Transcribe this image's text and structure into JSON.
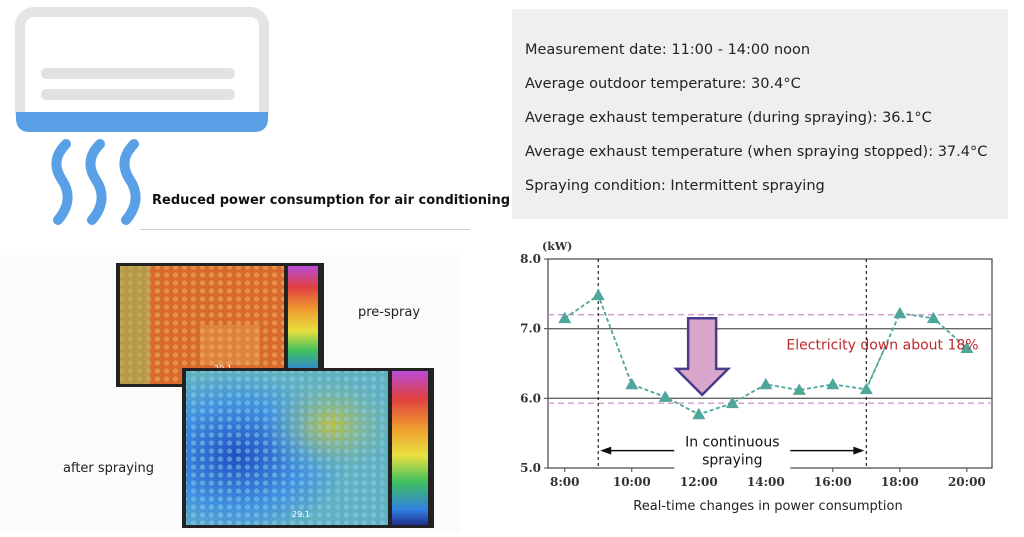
{
  "caption": {
    "ac": "Reduced power consumption for air conditioning"
  },
  "info": {
    "lines": [
      "Measurement date: 11:00 - 14:00 noon",
      "Average outdoor temperature: 30.4°C",
      "Average exhaust temperature (during spraying): 36.1°C",
      "Average exhaust temperature (when spraying stopped): 37.4°C",
      "Spraying condition: Intermittent spraying"
    ]
  },
  "thermal": {
    "pre_label": "pre-spray",
    "after_label": "after spraying",
    "pre_reading": "29.1",
    "after_reading": "29.1"
  },
  "icons": {
    "ac": "air-conditioner-icon",
    "heat": "heat-wave-icon"
  },
  "colors": {
    "accent_blue": "#5aa0e6",
    "series": "#4fa69a",
    "reference_line": "#cc9ccc",
    "annotation_red": "#c0282e",
    "arrow_fill": "#d9a6cc",
    "arrow_stroke": "#4a3c8a",
    "panel_bg": "#efefef"
  },
  "chart_data": {
    "type": "line",
    "title": "",
    "ylabel": "(kW)",
    "caption": "Real-time changes in power consumption",
    "x_ticks": [
      8,
      10,
      12,
      14,
      16,
      18,
      20
    ],
    "x_tick_labels": [
      "8:00",
      "10:00",
      "12:00",
      "14:00",
      "16:00",
      "18:00",
      "20:00"
    ],
    "y_ticks": [
      5,
      6,
      7,
      8
    ],
    "y_tick_labels": [
      "5.0",
      "6.0",
      "7.0",
      "8.0"
    ],
    "xlim": [
      7.5,
      20.75
    ],
    "ylim": [
      5.0,
      8.0
    ],
    "series": [
      {
        "x": [
          8,
          9,
          10,
          11,
          12,
          13,
          14,
          15,
          16,
          17,
          18,
          19,
          20
        ],
        "values": [
          7.15,
          7.48,
          6.2,
          6.02,
          5.77,
          5.93,
          6.2,
          6.12,
          6.2,
          6.13,
          7.22,
          7.15,
          6.72
        ]
      }
    ],
    "reference_lines": [
      7.2,
      5.93
    ],
    "gridlines_y": [
      6.0,
      7.0
    ],
    "spray_period": [
      9,
      17
    ],
    "annotations": {
      "reduction": "Electricity down about 18%",
      "period": "In continuous spraying"
    },
    "grid": true,
    "legend": "none"
  }
}
